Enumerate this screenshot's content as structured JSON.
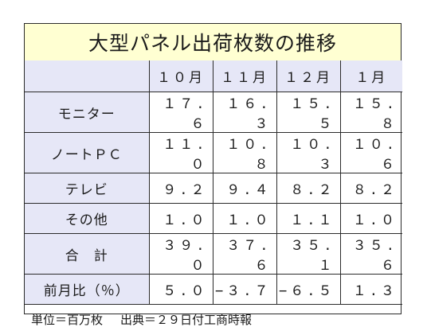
{
  "title": "大型パネル出荷枚数の推移",
  "months": [
    "１０月",
    "１１月",
    "１２月",
    "１月"
  ],
  "rows": [
    {
      "label": "モニター",
      "values": [
        "１７.６",
        "１６.３",
        "１５.５",
        "１５.８"
      ]
    },
    {
      "label": "ノートＰＣ",
      "values": [
        "１１.０",
        "１０.８",
        "１０.３",
        "１０.６"
      ]
    },
    {
      "label": "テレビ",
      "values": [
        "９.２",
        "９.４",
        "８.２",
        "８.２"
      ]
    },
    {
      "label": "その他",
      "values": [
        "１.０",
        "１.０",
        "１.１",
        "１.０"
      ]
    },
    {
      "label": "合　計",
      "values": [
        "３９.０",
        "３７.６",
        "３５.１",
        "３５.６"
      ]
    },
    {
      "label": "前月比（％）",
      "values": [
        "５.０",
        "−３.７",
        "−６.５",
        "１.３"
      ]
    }
  ],
  "footer": {
    "unit": "単位＝百万枚",
    "source": "出典＝２９日付工商時報"
  }
}
